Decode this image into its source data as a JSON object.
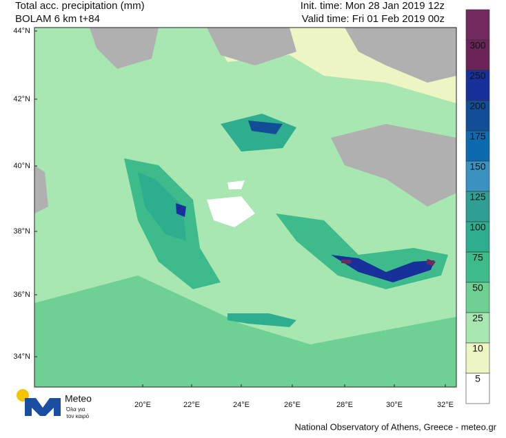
{
  "header": {
    "title_line1": "Total acc. precipitation (mm)",
    "title_line2": "BOLAM 6 km t+84",
    "init_time": "Init. time: Mon 28 Jan 2019 12z",
    "valid_time": "Valid time: Fri 01 Feb 2019 00z"
  },
  "map": {
    "lat_labels": [
      "44°N",
      "42°N",
      "40°N",
      "38°N",
      "36°N",
      "34°N"
    ],
    "lon_labels": [
      "20°E",
      "22°E",
      "24°E",
      "26°E",
      "28°E",
      "30°E",
      "32°E"
    ]
  },
  "colorbar": {
    "labels": [
      "300",
      "250",
      "200",
      "175",
      "150",
      "125",
      "100",
      "75",
      "50",
      "25",
      "10",
      "5"
    ],
    "colors": [
      "#702a5e",
      "#6a2458",
      "#17309a",
      "#124e96",
      "#0e6aae",
      "#3a92c0",
      "#2f9f94",
      "#2eae8e",
      "#3dbb8a",
      "#6fd093",
      "#a8e6b2",
      "#eef5c4",
      "#ffffff"
    ]
  },
  "logo": {
    "name": "Meteo",
    "tagline1": "Όλα για",
    "tagline2": "τον καιρό"
  },
  "footer": "National Observatory of Athens, Greece - meteo.gr"
}
